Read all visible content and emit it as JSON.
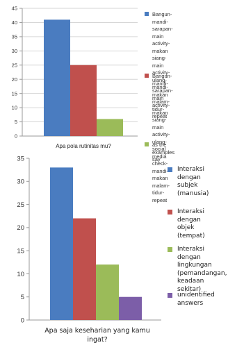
{
  "chart_data": [
    {
      "type": "bar",
      "xlabel": "Apa pola rutinitas mu?",
      "ylim": [
        0,
        45
      ],
      "yticks": [
        0,
        5,
        10,
        15,
        20,
        25,
        30,
        35,
        40,
        45
      ],
      "grid": true,
      "legend_position": "right",
      "series": [
        {
          "name": "Bangun-mandi-sarapan-\nmain activity-makan\nsiang-main activity-ulang-\nmandi-makan malam-\ntidur-repeat",
          "values": [
            41
          ],
          "color": "#4a7cc0"
        },
        {
          "name": "Bangun-mandi-sarapan-\nmain activity-makan\nsiang-main activity-ulang-\nsocial media check-mandi-\nmakan malam-tidur-\nrepeat",
          "values": [
            25
          ],
          "color": "#c0504d"
        },
        {
          "name": "as the examples say",
          "values": [
            6
          ],
          "color": "#9bbb59"
        }
      ]
    },
    {
      "type": "bar",
      "xlabel": "Apa saja keseharian yang kamu\ningat?",
      "ylim": [
        0,
        35
      ],
      "yticks": [
        0,
        5,
        10,
        15,
        20,
        25,
        30,
        35
      ],
      "grid": false,
      "legend_position": "right",
      "series": [
        {
          "name": "Interaksi dengan\nsubjek (manusia)",
          "values": [
            33
          ],
          "color": "#4a7cc0"
        },
        {
          "name": "Interaksi dengan\nobjek (tempat)",
          "values": [
            22
          ],
          "color": "#c0504d"
        },
        {
          "name": "Interaksi dengan\nlingkungan\n(pemandangan,\nkeadaan sekitar)",
          "values": [
            12
          ],
          "color": "#9bbb59"
        },
        {
          "name": "unidentified\nanswers",
          "values": [
            5
          ],
          "color": "#7c5ea8"
        }
      ]
    }
  ]
}
